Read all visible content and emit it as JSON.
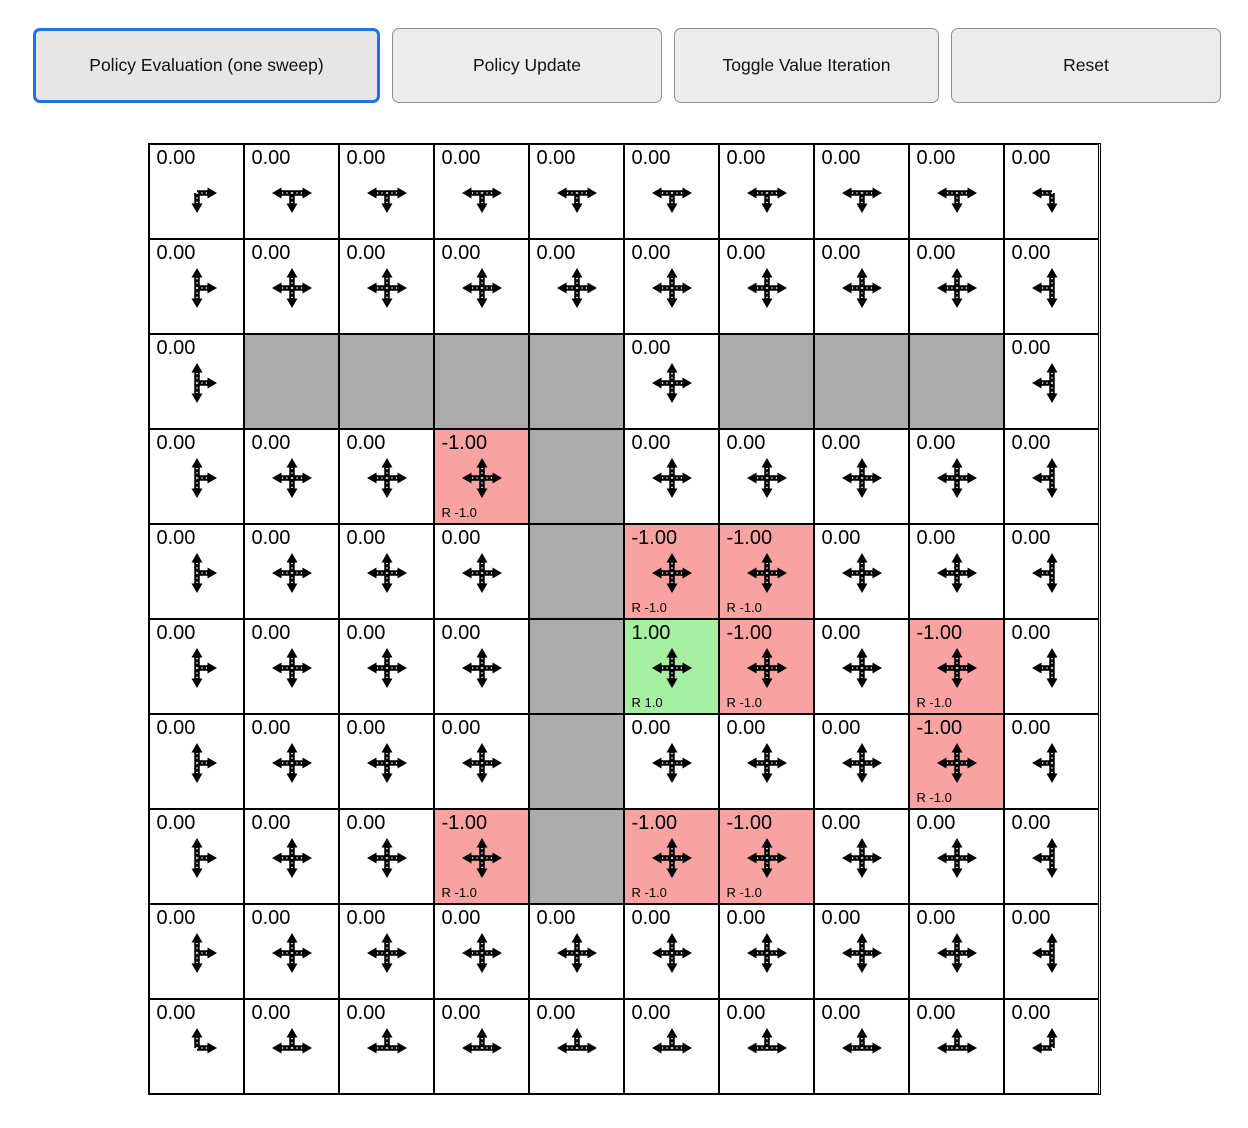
{
  "toolbar": {
    "buttons": [
      {
        "label": "Policy Evaluation (one sweep)",
        "active": true
      },
      {
        "label": "Policy Update",
        "active": false
      },
      {
        "label": "Toggle Value Iteration",
        "active": false
      },
      {
        "label": "Reset",
        "active": false
      }
    ]
  },
  "colors": {
    "wall": "#ababab",
    "negative_reward": "#f8a2a2",
    "positive_reward": "#a4f0a0",
    "cell_background": "#ffffff",
    "grid_border": "#000000",
    "active_button_border": "#1a73e8"
  },
  "grid": {
    "rows": 10,
    "cols": 10,
    "cells": [
      [
        {
          "value": "0.00",
          "arrows": "dr"
        },
        {
          "value": "0.00",
          "arrows": "dlr"
        },
        {
          "value": "0.00",
          "arrows": "dlr"
        },
        {
          "value": "0.00",
          "arrows": "dlr"
        },
        {
          "value": "0.00",
          "arrows": "dlr"
        },
        {
          "value": "0.00",
          "arrows": "dlr"
        },
        {
          "value": "0.00",
          "arrows": "dlr"
        },
        {
          "value": "0.00",
          "arrows": "dlr"
        },
        {
          "value": "0.00",
          "arrows": "dlr"
        },
        {
          "value": "0.00",
          "arrows": "dl"
        }
      ],
      [
        {
          "value": "0.00",
          "arrows": "udr"
        },
        {
          "value": "0.00",
          "arrows": "udlr"
        },
        {
          "value": "0.00",
          "arrows": "udlr"
        },
        {
          "value": "0.00",
          "arrows": "udlr"
        },
        {
          "value": "0.00",
          "arrows": "udlr"
        },
        {
          "value": "0.00",
          "arrows": "udlr"
        },
        {
          "value": "0.00",
          "arrows": "udlr"
        },
        {
          "value": "0.00",
          "arrows": "udlr"
        },
        {
          "value": "0.00",
          "arrows": "udlr"
        },
        {
          "value": "0.00",
          "arrows": "udl"
        }
      ],
      [
        {
          "value": "0.00",
          "arrows": "udr"
        },
        {
          "wall": true
        },
        {
          "wall": true
        },
        {
          "wall": true
        },
        {
          "wall": true
        },
        {
          "value": "0.00",
          "arrows": "udlr"
        },
        {
          "wall": true
        },
        {
          "wall": true
        },
        {
          "wall": true
        },
        {
          "value": "0.00",
          "arrows": "udl"
        }
      ],
      [
        {
          "value": "0.00",
          "arrows": "udr"
        },
        {
          "value": "0.00",
          "arrows": "udlr"
        },
        {
          "value": "0.00",
          "arrows": "udlr"
        },
        {
          "value": "-1.00",
          "reward": "R -1.0",
          "bg": "neg",
          "arrows": "udlr"
        },
        {
          "wall": true
        },
        {
          "value": "0.00",
          "arrows": "udlr"
        },
        {
          "value": "0.00",
          "arrows": "udlr"
        },
        {
          "value": "0.00",
          "arrows": "udlr"
        },
        {
          "value": "0.00",
          "arrows": "udlr"
        },
        {
          "value": "0.00",
          "arrows": "udl"
        }
      ],
      [
        {
          "value": "0.00",
          "arrows": "udr"
        },
        {
          "value": "0.00",
          "arrows": "udlr"
        },
        {
          "value": "0.00",
          "arrows": "udlr"
        },
        {
          "value": "0.00",
          "arrows": "udlr"
        },
        {
          "wall": true
        },
        {
          "value": "-1.00",
          "reward": "R -1.0",
          "bg": "neg",
          "arrows": "udlr"
        },
        {
          "value": "-1.00",
          "reward": "R -1.0",
          "bg": "neg",
          "arrows": "udlr"
        },
        {
          "value": "0.00",
          "arrows": "udlr"
        },
        {
          "value": "0.00",
          "arrows": "udlr"
        },
        {
          "value": "0.00",
          "arrows": "udl"
        }
      ],
      [
        {
          "value": "0.00",
          "arrows": "udr"
        },
        {
          "value": "0.00",
          "arrows": "udlr"
        },
        {
          "value": "0.00",
          "arrows": "udlr"
        },
        {
          "value": "0.00",
          "arrows": "udlr"
        },
        {
          "wall": true
        },
        {
          "value": "1.00",
          "reward": "R 1.0",
          "bg": "pos",
          "arrows": "udlr"
        },
        {
          "value": "-1.00",
          "reward": "R -1.0",
          "bg": "neg",
          "arrows": "udlr"
        },
        {
          "value": "0.00",
          "arrows": "udlr"
        },
        {
          "value": "-1.00",
          "reward": "R -1.0",
          "bg": "neg",
          "arrows": "udlr"
        },
        {
          "value": "0.00",
          "arrows": "udl"
        }
      ],
      [
        {
          "value": "0.00",
          "arrows": "udr"
        },
        {
          "value": "0.00",
          "arrows": "udlr"
        },
        {
          "value": "0.00",
          "arrows": "udlr"
        },
        {
          "value": "0.00",
          "arrows": "udlr"
        },
        {
          "wall": true
        },
        {
          "value": "0.00",
          "arrows": "udlr"
        },
        {
          "value": "0.00",
          "arrows": "udlr"
        },
        {
          "value": "0.00",
          "arrows": "udlr"
        },
        {
          "value": "-1.00",
          "reward": "R -1.0",
          "bg": "neg",
          "arrows": "udlr"
        },
        {
          "value": "0.00",
          "arrows": "udl"
        }
      ],
      [
        {
          "value": "0.00",
          "arrows": "udr"
        },
        {
          "value": "0.00",
          "arrows": "udlr"
        },
        {
          "value": "0.00",
          "arrows": "udlr"
        },
        {
          "value": "-1.00",
          "reward": "R -1.0",
          "bg": "neg",
          "arrows": "udlr"
        },
        {
          "wall": true
        },
        {
          "value": "-1.00",
          "reward": "R -1.0",
          "bg": "neg",
          "arrows": "udlr"
        },
        {
          "value": "-1.00",
          "reward": "R -1.0",
          "bg": "neg",
          "arrows": "udlr"
        },
        {
          "value": "0.00",
          "arrows": "udlr"
        },
        {
          "value": "0.00",
          "arrows": "udlr"
        },
        {
          "value": "0.00",
          "arrows": "udl"
        }
      ],
      [
        {
          "value": "0.00",
          "arrows": "udr"
        },
        {
          "value": "0.00",
          "arrows": "udlr"
        },
        {
          "value": "0.00",
          "arrows": "udlr"
        },
        {
          "value": "0.00",
          "arrows": "udlr"
        },
        {
          "value": "0.00",
          "arrows": "udlr"
        },
        {
          "value": "0.00",
          "arrows": "udlr"
        },
        {
          "value": "0.00",
          "arrows": "udlr"
        },
        {
          "value": "0.00",
          "arrows": "udlr"
        },
        {
          "value": "0.00",
          "arrows": "udlr"
        },
        {
          "value": "0.00",
          "arrows": "udl"
        }
      ],
      [
        {
          "value": "0.00",
          "arrows": "ur"
        },
        {
          "value": "0.00",
          "arrows": "ulr"
        },
        {
          "value": "0.00",
          "arrows": "ulr"
        },
        {
          "value": "0.00",
          "arrows": "ulr"
        },
        {
          "value": "0.00",
          "arrows": "ulr"
        },
        {
          "value": "0.00",
          "arrows": "ulr"
        },
        {
          "value": "0.00",
          "arrows": "ulr"
        },
        {
          "value": "0.00",
          "arrows": "ulr"
        },
        {
          "value": "0.00",
          "arrows": "ulr"
        },
        {
          "value": "0.00",
          "arrows": "ul"
        }
      ]
    ]
  }
}
